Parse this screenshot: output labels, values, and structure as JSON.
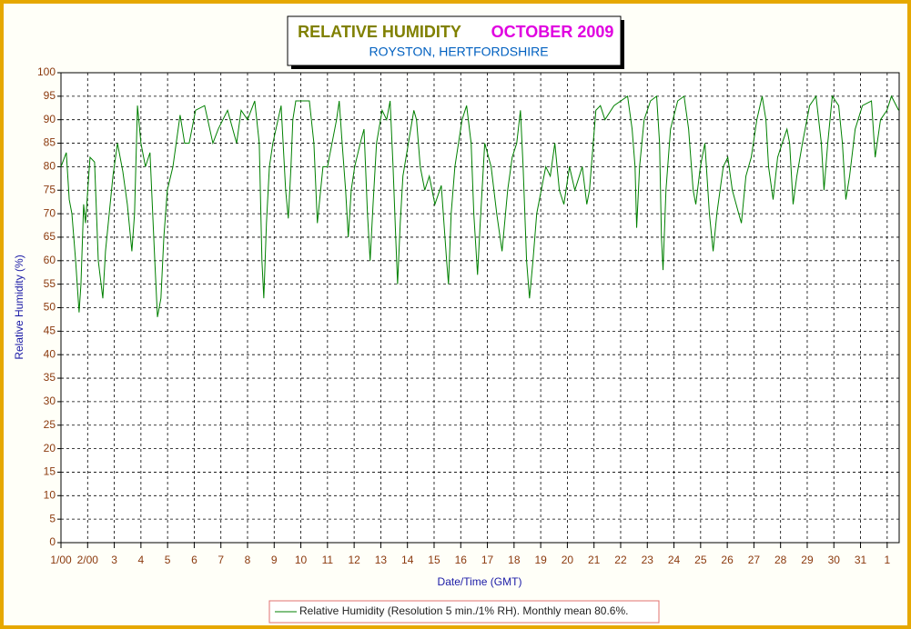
{
  "chart_data": {
    "type": "line",
    "title": "RELATIVE HUMIDITY",
    "title_period": "OCTOBER 2009",
    "subtitle": "ROYSTON, HERTFORDSHIRE",
    "x_label": "Date/Time (GMT)",
    "y_label": "Relative Humidity (%)",
    "xlim": [
      0,
      31.45
    ],
    "ylim": [
      0,
      100
    ],
    "xticks": [
      {
        "value": 0,
        "label": "1/00"
      },
      {
        "value": 1,
        "label": "2/00"
      },
      {
        "value": 2,
        "label": "3"
      },
      {
        "value": 3,
        "label": "4"
      },
      {
        "value": 4,
        "label": "5"
      },
      {
        "value": 5,
        "label": "6"
      },
      {
        "value": 6,
        "label": "7"
      },
      {
        "value": 7,
        "label": "8"
      },
      {
        "value": 8,
        "label": "9"
      },
      {
        "value": 9,
        "label": "10"
      },
      {
        "value": 10,
        "label": "11"
      },
      {
        "value": 11,
        "label": "12"
      },
      {
        "value": 12,
        "label": "13"
      },
      {
        "value": 13,
        "label": "14"
      },
      {
        "value": 14,
        "label": "15"
      },
      {
        "value": 15,
        "label": "16"
      },
      {
        "value": 16,
        "label": "17"
      },
      {
        "value": 17,
        "label": "18"
      },
      {
        "value": 18,
        "label": "19"
      },
      {
        "value": 19,
        "label": "20"
      },
      {
        "value": 20,
        "label": "21"
      },
      {
        "value": 21,
        "label": "22"
      },
      {
        "value": 22,
        "label": "23"
      },
      {
        "value": 23,
        "label": "24"
      },
      {
        "value": 24,
        "label": "25"
      },
      {
        "value": 25,
        "label": "26"
      },
      {
        "value": 26,
        "label": "27"
      },
      {
        "value": 27,
        "label": "28"
      },
      {
        "value": 28,
        "label": "29"
      },
      {
        "value": 29,
        "label": "30"
      },
      {
        "value": 30,
        "label": "31"
      },
      {
        "value": 31,
        "label": "1"
      }
    ],
    "yticks": [
      0,
      5,
      10,
      15,
      20,
      25,
      30,
      35,
      40,
      45,
      50,
      55,
      60,
      65,
      70,
      75,
      80,
      85,
      90,
      95,
      100
    ],
    "grid": true,
    "series": [
      {
        "name": "Relative Humidity (Resolution 5 min./1% RH). Monthly mean 80.6%.",
        "color": "#008000",
        "x": [
          0,
          0.2,
          0.31,
          0.41,
          0.55,
          0.68,
          0.75,
          0.85,
          0.92,
          1.09,
          1.26,
          1.4,
          1.57,
          1.67,
          1.81,
          1.95,
          2.12,
          2.32,
          2.49,
          2.66,
          2.76,
          2.87,
          3.0,
          3.17,
          3.34,
          3.52,
          3.62,
          3.75,
          3.86,
          3.99,
          4.2,
          4.47,
          4.64,
          4.81,
          5.05,
          5.39,
          5.7,
          5.9,
          6.25,
          6.59,
          6.76,
          7.0,
          7.27,
          7.44,
          7.54,
          7.61,
          7.71,
          7.82,
          7.95,
          8.26,
          8.43,
          8.53,
          8.63,
          8.7,
          8.81,
          9.32,
          9.49,
          9.62,
          9.83,
          10.0,
          10.17,
          10.34,
          10.44,
          10.55,
          10.68,
          10.78,
          10.89,
          11.02,
          11.23,
          11.37,
          11.5,
          11.6,
          11.71,
          11.84,
          12.05,
          12.22,
          12.35,
          12.46,
          12.56,
          12.63,
          12.73,
          12.83,
          13.24,
          13.34,
          13.48,
          13.65,
          13.82,
          14.03,
          14.27,
          14.47,
          14.54,
          14.64,
          14.78,
          15.05,
          15.22,
          15.39,
          15.49,
          15.63,
          15.73,
          15.9,
          16.14,
          16.35,
          16.55,
          16.76,
          16.93,
          17.1,
          17.24,
          17.34,
          17.47,
          17.58,
          17.71,
          17.85,
          18.02,
          18.19,
          18.36,
          18.53,
          18.7,
          18.87,
          19.08,
          19.28,
          19.56,
          19.73,
          19.83,
          19.97,
          20.07,
          20.24,
          20.41,
          20.75,
          21.26,
          21.43,
          21.54,
          21.6,
          21.71,
          21.88,
          22.12,
          22.35,
          22.46,
          22.53,
          22.59,
          22.7,
          22.87,
          23.14,
          23.38,
          23.55,
          23.72,
          23.82,
          23.99,
          24.16,
          24.33,
          24.47,
          24.61,
          24.85,
          25.02,
          25.19,
          25.43,
          25.53,
          25.7,
          25.9,
          26.11,
          26.31,
          26.45,
          26.55,
          26.72,
          26.89,
          27.06,
          27.24,
          27.34,
          27.47,
          27.61,
          27.82,
          28.09,
          28.33,
          28.53,
          28.63,
          28.77,
          28.94,
          29.18,
          29.32,
          29.45,
          29.59,
          29.8,
          30.07,
          30.41,
          30.55,
          30.75,
          30.99,
          31.16,
          31.43
        ],
        "values": [
          80,
          83,
          73,
          70,
          60,
          49,
          55,
          72,
          68,
          82,
          81,
          60,
          52,
          62,
          70,
          78,
          85,
          79,
          72,
          62,
          70,
          93,
          85,
          80,
          83,
          60,
          48,
          52,
          65,
          75,
          80,
          91,
          85,
          85,
          92,
          93,
          85,
          88,
          92,
          85,
          92,
          90,
          94,
          85,
          60,
          52,
          68,
          80,
          85,
          93,
          75,
          69,
          80,
          90,
          94,
          94,
          85,
          68,
          80,
          80,
          85,
          90,
          94,
          85,
          75,
          65,
          75,
          80,
          85,
          88,
          70,
          60,
          72,
          85,
          92,
          90,
          94,
          80,
          65,
          55,
          68,
          78,
          92,
          90,
          80,
          75,
          78,
          72,
          76,
          60,
          55,
          70,
          80,
          90,
          93,
          85,
          70,
          57,
          68,
          85,
          80,
          70,
          62,
          75,
          82,
          85,
          92,
          80,
          60,
          52,
          60,
          70,
          75,
          80,
          78,
          85,
          75,
          72,
          80,
          75,
          80,
          72,
          75,
          85,
          92,
          93,
          90,
          93,
          95,
          88,
          80,
          67,
          80,
          90,
          94,
          95,
          85,
          65,
          58,
          75,
          88,
          94,
          95,
          88,
          75,
          72,
          80,
          85,
          70,
          62,
          70,
          80,
          82,
          75,
          70,
          68,
          78,
          82,
          90,
          95,
          90,
          80,
          73,
          82,
          85,
          88,
          85,
          72,
          78,
          85,
          93,
          95,
          85,
          75,
          85,
          95,
          93,
          85,
          73,
          78,
          88,
          93,
          94,
          82,
          90,
          92,
          95,
          92
        ]
      }
    ]
  }
}
